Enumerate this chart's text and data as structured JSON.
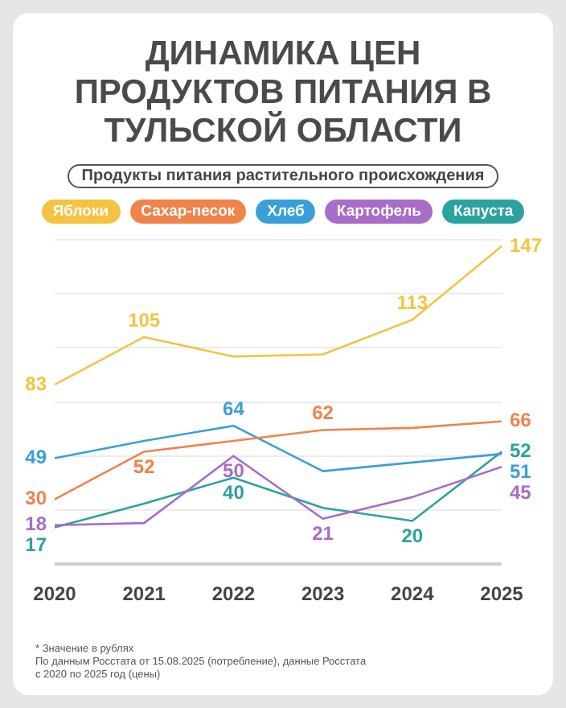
{
  "chart_data": {
    "type": "line",
    "title": "ДИНАМИКА ЦЕН ПРОДУКТОВ ПИТАНИЯ В ТУЛЬСКОЙ ОБЛАСТИ",
    "subtitle": "Продукты питания растительного происхождения",
    "categories": [
      "2020",
      "2021",
      "2022",
      "2023",
      "2024",
      "2025"
    ],
    "series": [
      {
        "name": "Яблоки",
        "color": "#f5c342",
        "values": [
          83,
          105,
          96,
          97,
          113,
          147
        ],
        "value_labels": [
          "83",
          "105",
          null,
          null,
          "113",
          "147"
        ]
      },
      {
        "name": "Сахар-песок",
        "color": "#f0834a",
        "values": [
          30,
          52,
          57,
          62,
          63,
          66
        ],
        "value_labels": [
          "30",
          "52",
          null,
          "62",
          null,
          "66"
        ]
      },
      {
        "name": "Хлеб",
        "color": "#3a9fd6",
        "values": [
          49,
          57,
          64,
          43,
          47,
          51
        ],
        "value_labels": [
          "49",
          null,
          "64",
          null,
          null,
          "51"
        ]
      },
      {
        "name": "Картофель",
        "color": "#a86cc9",
        "values": [
          18,
          19,
          50,
          21,
          31,
          45
        ],
        "value_labels": [
          "18",
          null,
          "50",
          "21",
          null,
          "45"
        ]
      },
      {
        "name": "Капуста",
        "color": "#2aa3a0",
        "values": [
          17,
          28,
          40,
          26,
          20,
          52
        ],
        "value_labels": [
          "17",
          null,
          "40",
          null,
          "20",
          "52"
        ]
      }
    ],
    "ylim": [
      0,
      150
    ],
    "yticks": [
      {
        "value": 0,
        "label": null
      },
      {
        "value": 25,
        "label": null
      },
      {
        "value": 50,
        "label": null
      },
      {
        "value": 75,
        "label": null
      },
      {
        "value": 100,
        "label": null
      },
      {
        "value": 125,
        "label": null
      },
      {
        "value": 150,
        "label": null
      }
    ],
    "tick_labels": "x",
    "grid": "y",
    "legend": "top",
    "marker": "none",
    "annotations": [
      "* Значение в рублях",
      "По данным Росстата от 15.08.2025 (потребление), данные Росстата с 2020 по 2025 год (цены)"
    ]
  }
}
